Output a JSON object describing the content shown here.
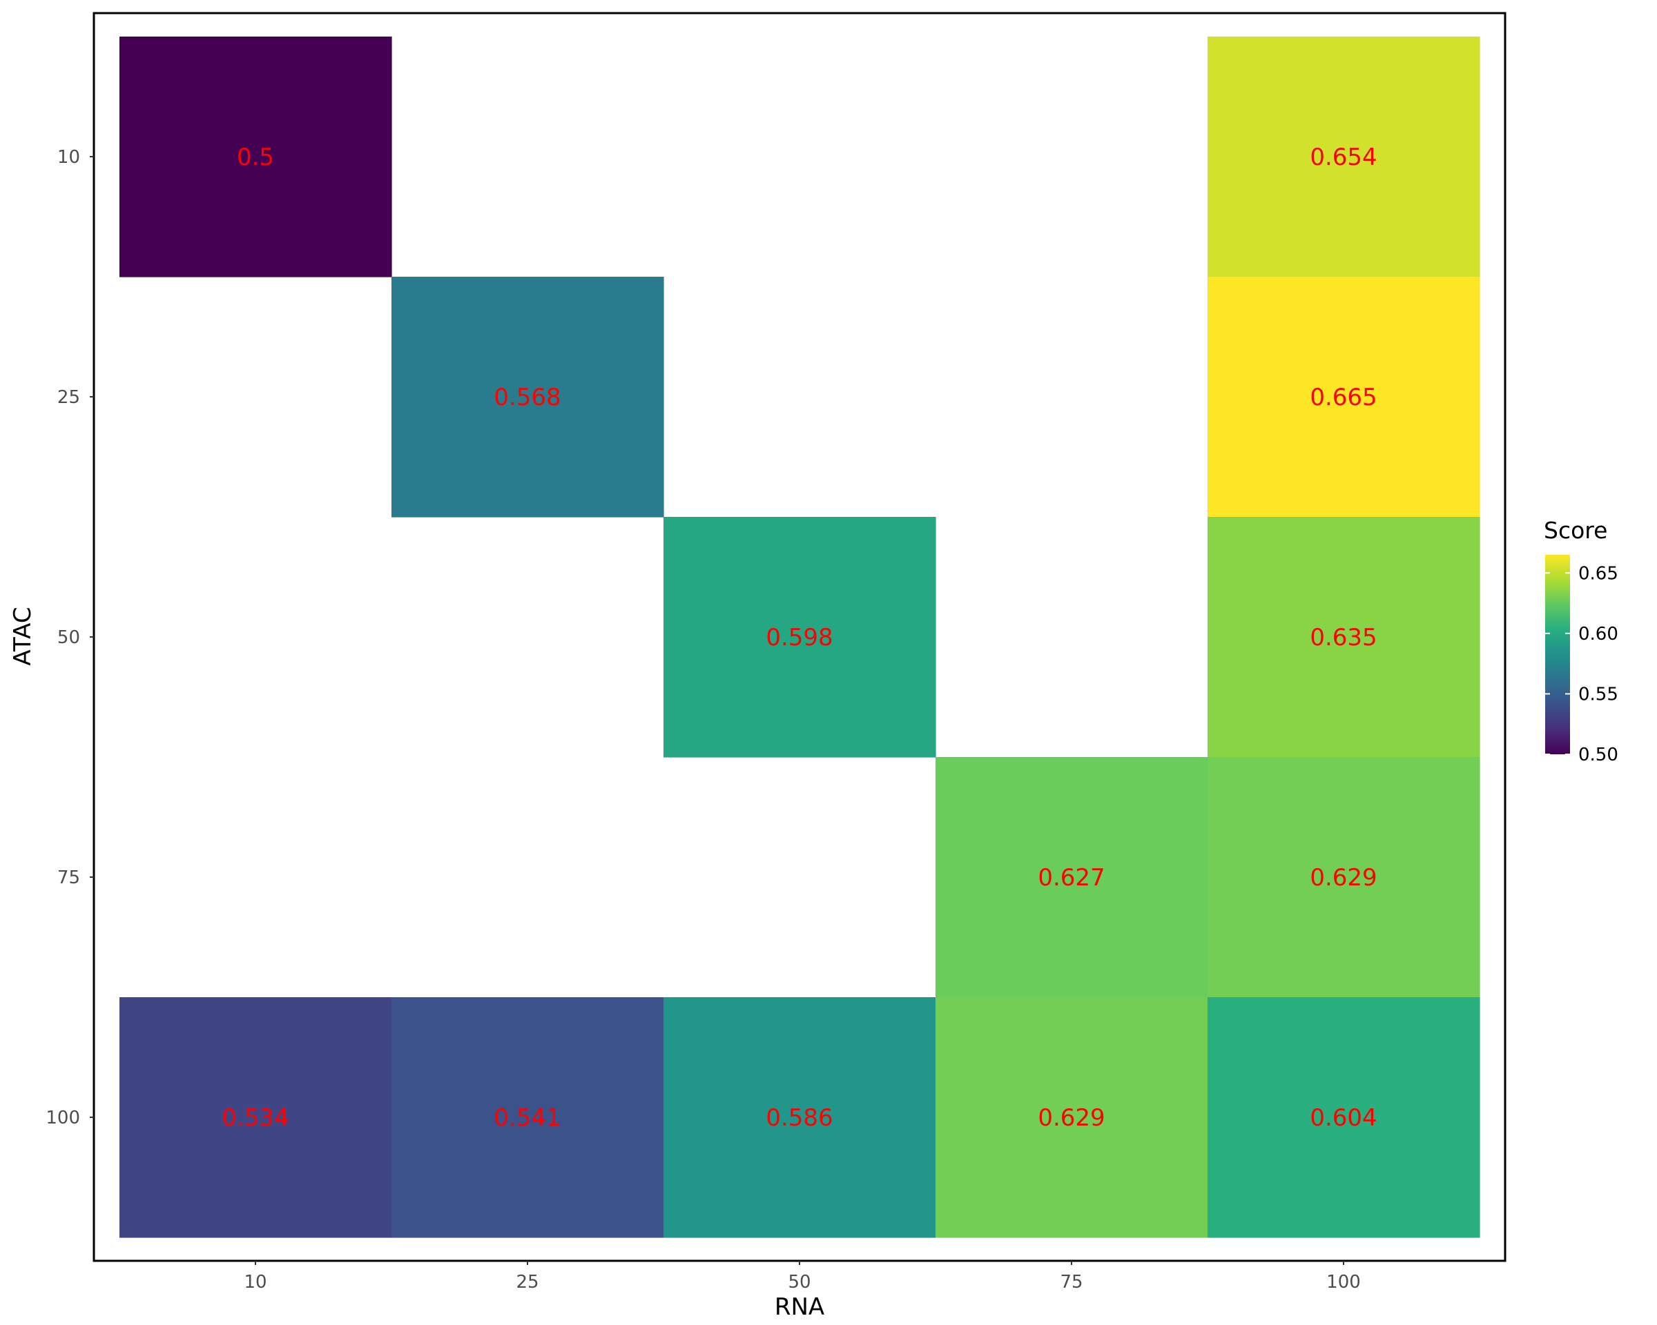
{
  "chart_data": {
    "type": "heatmap",
    "x_categories": [
      "10",
      "25",
      "50",
      "75",
      "100"
    ],
    "y_categories": [
      "10",
      "25",
      "50",
      "75",
      "100"
    ],
    "xlabel": "RNA",
    "ylabel": "ATAC",
    "cells": [
      {
        "x": "10",
        "y": "10",
        "value": 0.5,
        "label": "0.5"
      },
      {
        "x": "100",
        "y": "10",
        "value": 0.654,
        "label": "0.654"
      },
      {
        "x": "25",
        "y": "25",
        "value": 0.568,
        "label": "0.568"
      },
      {
        "x": "100",
        "y": "25",
        "value": 0.665,
        "label": "0.665"
      },
      {
        "x": "50",
        "y": "50",
        "value": 0.598,
        "label": "0.598"
      },
      {
        "x": "100",
        "y": "50",
        "value": 0.635,
        "label": "0.635"
      },
      {
        "x": "75",
        "y": "75",
        "value": 0.627,
        "label": "0.627"
      },
      {
        "x": "100",
        "y": "75",
        "value": 0.629,
        "label": "0.629"
      },
      {
        "x": "10",
        "y": "100",
        "value": 0.534,
        "label": "0.534"
      },
      {
        "x": "25",
        "y": "100",
        "value": 0.541,
        "label": "0.541"
      },
      {
        "x": "50",
        "y": "100",
        "value": 0.586,
        "label": "0.586"
      },
      {
        "x": "75",
        "y": "100",
        "value": 0.629,
        "label": "0.629"
      },
      {
        "x": "100",
        "y": "100",
        "value": 0.604,
        "label": "0.604"
      }
    ],
    "legend": {
      "title": "Score",
      "ticks": [
        0.5,
        0.55,
        0.6,
        0.65
      ],
      "tick_labels": [
        "0.50",
        "0.55",
        "0.60",
        "0.65"
      ],
      "range": [
        0.5,
        0.665
      ],
      "placement": "right",
      "palette": "viridis"
    },
    "label_color": "#ff0000",
    "grid": false
  }
}
